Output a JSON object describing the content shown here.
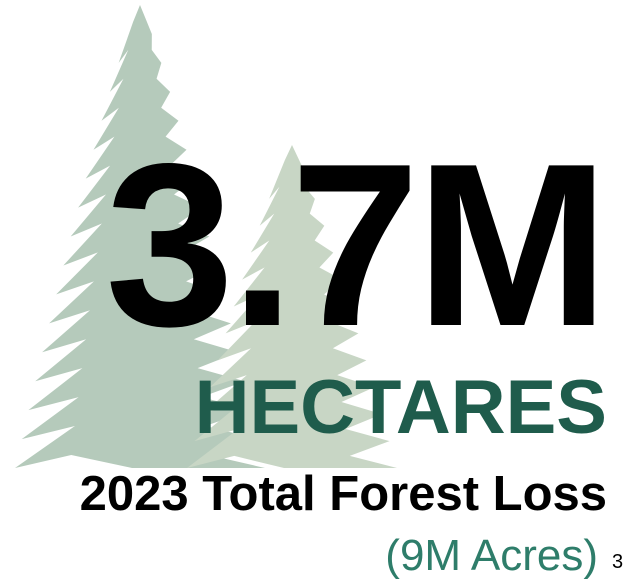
{
  "headline": {
    "value": "3.7M",
    "unit": "HECTARES"
  },
  "caption": "2023 Total Forest Loss",
  "note": "(9M Acres)",
  "footnote": "3"
}
